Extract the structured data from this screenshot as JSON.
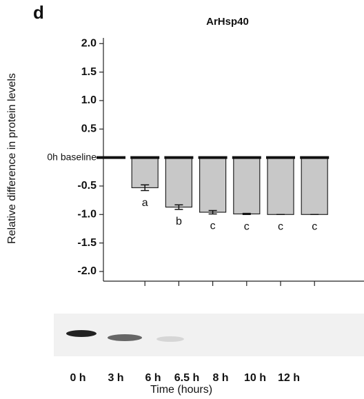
{
  "chart_data": {
    "type": "bar",
    "panel_label": "d",
    "title": "ArHsp40",
    "y_label": "Relative difference in protein levels",
    "x_label": "Time (hours)",
    "categories": [
      "0 h",
      "3 h",
      "6 h",
      "6.5 h",
      "8 h",
      "10 h",
      "12 h"
    ],
    "values": [
      0,
      -0.53,
      -0.87,
      -0.96,
      -0.99,
      -1.0,
      -1.0
    ],
    "errors": [
      0,
      0.05,
      0.04,
      0.03,
      0.01,
      0,
      0
    ],
    "significance_labels": [
      null,
      "a",
      "b",
      "c",
      "c",
      "c",
      "c"
    ],
    "color": "#c8c8c8",
    "ylim": [
      -2.17,
      2.1
    ],
    "yticks": [
      -2.0,
      -1.5,
      -1.0,
      -0.5,
      {
        "value": 0,
        "label": "0h baseline"
      },
      0.5,
      1.0,
      1.5,
      2.0
    ]
  }
}
